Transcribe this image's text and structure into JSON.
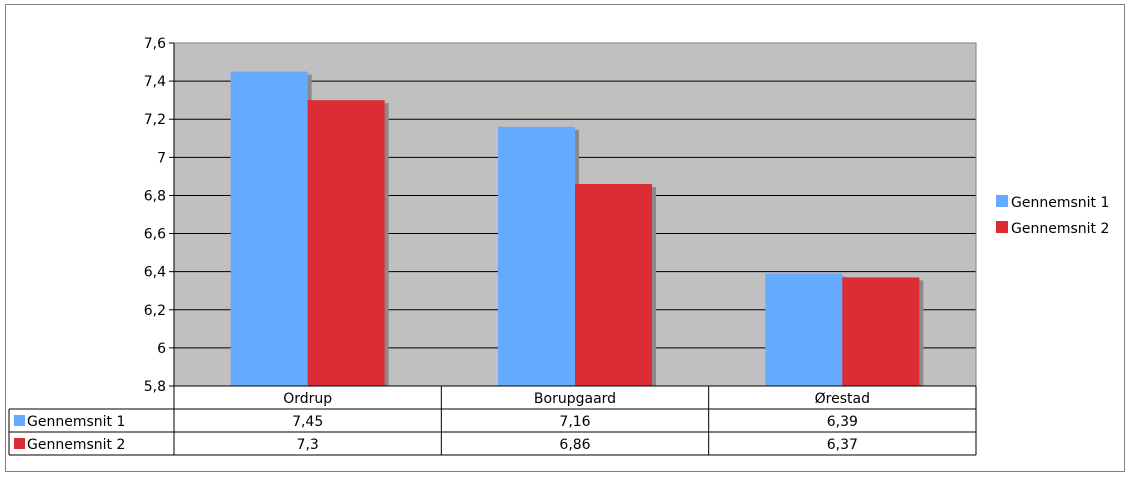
{
  "chart_data": {
    "type": "bar",
    "categories": [
      "Ordrup",
      "Borupgaard",
      "Ørestad"
    ],
    "series": [
      {
        "name": "Gennemsnit 1",
        "color": "#66aaff",
        "values": [
          7.45,
          7.16,
          6.39
        ],
        "labels": [
          "7,45",
          "7,16",
          "6,39"
        ]
      },
      {
        "name": "Gennemsnit 2",
        "color": "#dd2d34",
        "values": [
          7.3,
          6.86,
          6.37
        ],
        "labels": [
          "7,3",
          "6,86",
          "6,37"
        ]
      }
    ],
    "ylim": [
      5.8,
      7.6
    ],
    "yticks": [
      5.8,
      6.0,
      6.2,
      6.4,
      6.6,
      6.8,
      7.0,
      7.2,
      7.4,
      7.6
    ],
    "ytick_labels": [
      "5,8",
      "6",
      "6,2",
      "6,4",
      "6,6",
      "6,8",
      "7",
      "7,2",
      "7,4",
      "7,6"
    ],
    "grid": true,
    "plot_background": "#c0c0c0",
    "legend_position": "right",
    "data_table": true,
    "title": "",
    "xlabel": "",
    "ylabel": ""
  }
}
